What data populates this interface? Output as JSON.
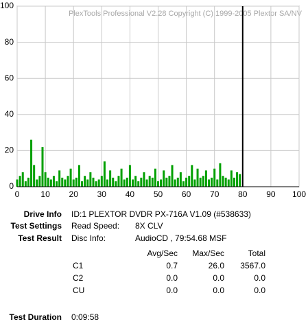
{
  "chart_data": {
    "type": "bar",
    "watermark": "PlexTools Professional V2.28 Copyright (C) 1999-2005 Plextor SA/NV",
    "x": [
      0,
      1,
      2,
      3,
      4,
      5,
      6,
      7,
      8,
      9,
      10,
      11,
      12,
      13,
      14,
      15,
      16,
      17,
      18,
      19,
      20,
      21,
      22,
      23,
      24,
      25,
      26,
      27,
      28,
      29,
      30,
      31,
      32,
      33,
      34,
      35,
      36,
      37,
      38,
      39,
      40,
      41,
      42,
      43,
      44,
      45,
      46,
      47,
      48,
      49,
      50,
      51,
      52,
      53,
      54,
      55,
      56,
      57,
      58,
      59,
      60,
      61,
      62,
      63,
      64,
      65,
      66,
      67,
      68,
      69,
      70,
      71,
      72,
      73,
      74,
      75,
      76,
      77,
      78,
      79
    ],
    "values": [
      4,
      6,
      8,
      3,
      5,
      26,
      12,
      4,
      6,
      22,
      8,
      5,
      4,
      6,
      3,
      9,
      5,
      4,
      6,
      10,
      4,
      5,
      12,
      3,
      6,
      4,
      8,
      5,
      3,
      4,
      6,
      14,
      4,
      9,
      5,
      3,
      6,
      10,
      4,
      5,
      12,
      4,
      6,
      3,
      5,
      8,
      4,
      6,
      5,
      10,
      3,
      4,
      9,
      5,
      6,
      12,
      4,
      5,
      8,
      3,
      5,
      6,
      12,
      4,
      10,
      5,
      6,
      9,
      4,
      5,
      10,
      4,
      13,
      6,
      5,
      4,
      9,
      5,
      8,
      7
    ],
    "color": "#00a000",
    "end_marker": 80,
    "xlim": [
      0,
      100
    ],
    "xticks": [
      0,
      10,
      20,
      30,
      40,
      50,
      60,
      70,
      80,
      90,
      100
    ],
    "ylim": [
      0,
      100
    ],
    "yticks": [
      0,
      20,
      40,
      60,
      80,
      100
    ],
    "grid": true
  },
  "info": {
    "drive_label": "Drive Info",
    "drive": "ID:1 PLEXTOR DVDR PX-716A V1.09 (#538633)",
    "settings_label": "Test Settings",
    "speed_label": "Read Speed:",
    "speed": "8X CLV",
    "result_label": "Test Result",
    "disc_label": "Disc Info:",
    "disc": "AudioCD , 79:54.68 MSF",
    "table": {
      "header": [
        "Avg/Sec",
        "Max/Sec",
        "Total"
      ],
      "rows": [
        [
          "C1",
          "0.7",
          "26.0",
          "3567.0"
        ],
        [
          "C2",
          "0.0",
          "0.0",
          "0.0"
        ],
        [
          "CU",
          "0.0",
          "0.0",
          "0.0"
        ]
      ]
    },
    "duration_label": "Test Duration",
    "duration": "0:09:58"
  }
}
